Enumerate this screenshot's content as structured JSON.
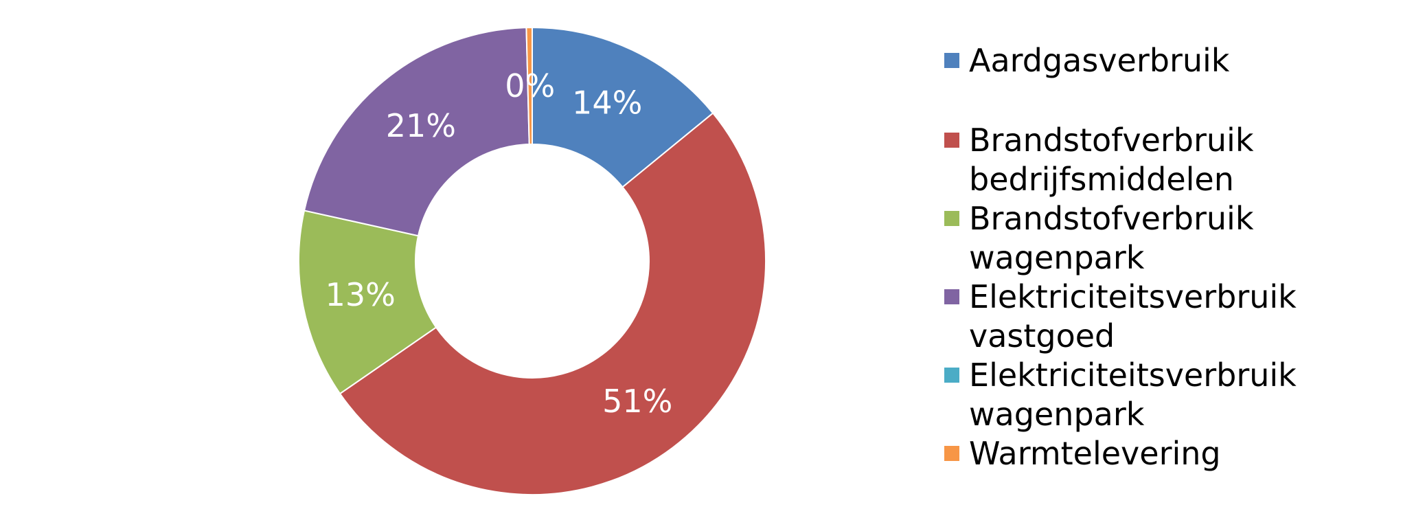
{
  "chart_data": {
    "type": "pie",
    "variant": "donut",
    "title": "",
    "slices": [
      {
        "label": "Aardgasverbruik",
        "value": 14,
        "display": "14%",
        "color": "#4F81BD"
      },
      {
        "label": "Brandstofverbruik bedrijfsmiddelen",
        "value": 51,
        "display": "51%",
        "color": "#C0504D"
      },
      {
        "label": "Brandstofverbruik wagenpark",
        "value": 13,
        "display": "13%",
        "color": "#9BBB59"
      },
      {
        "label": "Elektriciteitsverbruik vastgoed",
        "value": 21,
        "display": "21%",
        "color": "#8064A2"
      },
      {
        "label": "Elektriciteitsverbruik wagenpark",
        "value": 0,
        "display": "",
        "color": "#4BACC6"
      },
      {
        "label": "Warmtelevering",
        "value": 0.4,
        "display": "0%",
        "color": "#F79646"
      }
    ],
    "legend": {
      "position": "right",
      "entries": [
        [
          "Aardgasverbruik"
        ],
        [
          "Brandstofverbruik",
          "bedrijfsmiddelen"
        ],
        [
          "Brandstofverbruik",
          "wagenpark"
        ],
        [
          "Elektriciteitsverbruik",
          "vastgoed"
        ],
        [
          "Elektriciteitsverbruik",
          "wagenpark"
        ],
        [
          "Warmtelevering"
        ]
      ]
    }
  }
}
